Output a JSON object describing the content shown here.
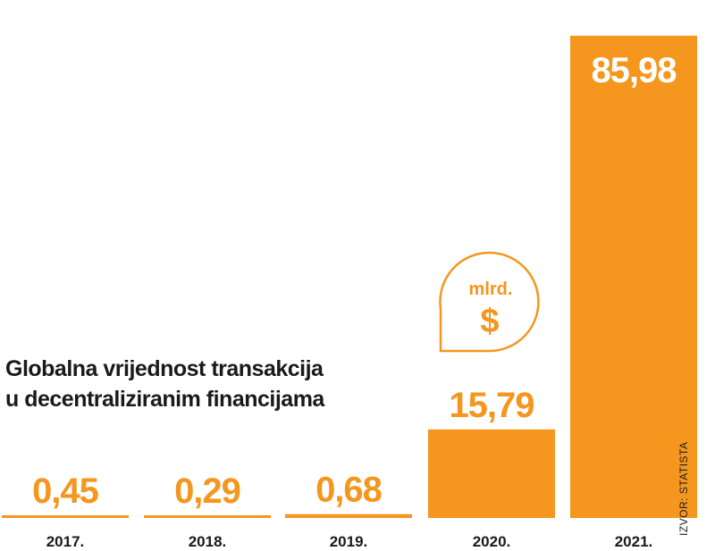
{
  "title": {
    "line1": "Globalna vrijednost transakcija",
    "line2": "u decentraliziranim financijama"
  },
  "unit_badge": {
    "unit": "mlrd.",
    "symbol": "$"
  },
  "source": "IZVOR: STATISTA",
  "colors": {
    "bar": "#f5961e",
    "value_on_bar": "#ffffff",
    "axis_text": "#1a1a1a"
  },
  "chart_data": {
    "type": "bar",
    "title": "Globalna vrijednost transakcija u decentraliziranim financijama",
    "categories": [
      "2017.",
      "2018.",
      "2019.",
      "2020.",
      "2021."
    ],
    "values": [
      0.45,
      0.29,
      0.68,
      15.79,
      85.98
    ],
    "value_labels": [
      "0,45",
      "0,29",
      "0,68",
      "15,79",
      "85,98"
    ],
    "unit": "mlrd. $",
    "ylim": [
      0,
      90
    ],
    "grid": false,
    "xlabel": "",
    "ylabel": ""
  }
}
